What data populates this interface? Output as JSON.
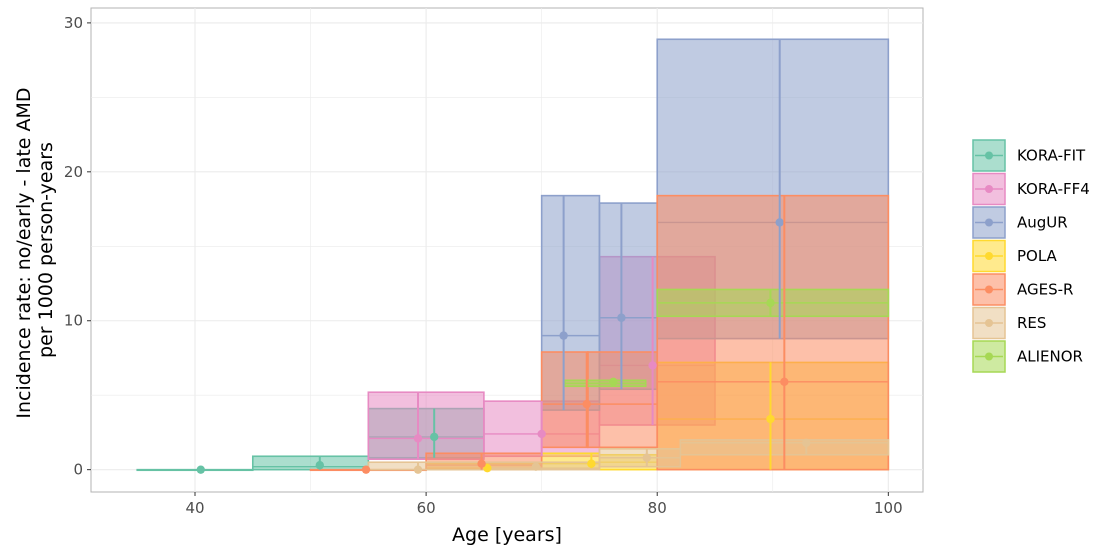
{
  "chart_data": {
    "type": "area",
    "xlabel": "Age [years]",
    "ylabel_lines": [
      "Incidence rate: no/early - late AMD",
      "per 1000 person-years"
    ],
    "xlim": [
      31,
      103
    ],
    "ylim": [
      -1.5,
      31
    ],
    "x_ticks": [
      40,
      60,
      80,
      100
    ],
    "y_ticks": [
      0,
      10,
      20,
      30
    ],
    "x_tick_labels": [
      "40",
      "60",
      "80",
      "100"
    ],
    "y_tick_labels": [
      "0",
      "10",
      "20",
      "30"
    ],
    "grid": true,
    "legend_position": "right",
    "series": [
      {
        "name": "KORA-FIT",
        "color": "#66c2a5",
        "bands": [
          {
            "x0": 35,
            "x1": 45,
            "lo": 0,
            "hi": 0,
            "est": 0
          },
          {
            "x0": 45,
            "x1": 55,
            "lo": 0,
            "hi": 0.9,
            "est": 0.2
          },
          {
            "x0": 55,
            "x1": 65,
            "lo": 0.8,
            "hi": 4.1,
            "est": 2.2
          }
        ],
        "points": [
          {
            "x": 40.5,
            "y": 0,
            "lo": 0,
            "hi": 0
          },
          {
            "x": 50.8,
            "y": 0.3,
            "lo": 0,
            "hi": 0.9
          },
          {
            "x": 60.7,
            "y": 2.2,
            "lo": 0.8,
            "hi": 4.1
          }
        ]
      },
      {
        "name": "KORA-FF4",
        "color": "#e78ac3",
        "bands": [
          {
            "x0": 55,
            "x1": 65,
            "lo": 0.7,
            "hi": 5.2,
            "est": 2.1
          },
          {
            "x0": 65,
            "x1": 75,
            "lo": 0.9,
            "hi": 4.6,
            "est": 2.4
          },
          {
            "x0": 75,
            "x1": 85,
            "lo": 3.0,
            "hi": 14.3,
            "est": 7.0
          }
        ],
        "points": [
          {
            "x": 59.3,
            "y": 2.1,
            "lo": 0.7,
            "hi": 5.2
          },
          {
            "x": 70.0,
            "y": 2.4,
            "lo": 0.9,
            "hi": 4.6
          },
          {
            "x": 79.6,
            "y": 7.0,
            "lo": 3.0,
            "hi": 14.3
          }
        ]
      },
      {
        "name": "AugUR",
        "color": "#8da0cb",
        "bands": [
          {
            "x0": 70,
            "x1": 75,
            "lo": 4.0,
            "hi": 18.4,
            "est": 9.0
          },
          {
            "x0": 75,
            "x1": 80,
            "lo": 5.4,
            "hi": 17.9,
            "est": 10.2
          },
          {
            "x0": 80,
            "x1": 100,
            "lo": 8.8,
            "hi": 28.9,
            "est": 16.6
          }
        ],
        "points": [
          {
            "x": 71.9,
            "y": 9.0,
            "lo": 4.0,
            "hi": 18.4
          },
          {
            "x": 76.9,
            "y": 10.2,
            "lo": 5.4,
            "hi": 17.9
          },
          {
            "x": 90.6,
            "y": 16.6,
            "lo": 8.8,
            "hi": 28.9
          }
        ]
      },
      {
        "name": "POLA",
        "color": "#ffd92f",
        "bands": [
          {
            "x0": 60,
            "x1": 65,
            "lo": 0,
            "hi": 0.4,
            "est": 0.1
          },
          {
            "x0": 65,
            "x1": 70,
            "lo": 0,
            "hi": 0.4,
            "est": 0.1
          },
          {
            "x0": 70,
            "x1": 75,
            "lo": 0.1,
            "hi": 1.1,
            "est": 0.4
          },
          {
            "x0": 75,
            "x1": 80,
            "lo": 0,
            "hi": 1.0,
            "est": 0.5
          },
          {
            "x0": 80,
            "x1": 100,
            "lo": 0,
            "hi": 7.2,
            "est": 3.4
          }
        ],
        "points": [
          {
            "x": 65.3,
            "y": 0.1,
            "lo": 0,
            "hi": 0.4
          },
          {
            "x": 74.3,
            "y": 0.4,
            "lo": 0.1,
            "hi": 1.1
          },
          {
            "x": 89.8,
            "y": 3.4,
            "lo": 0,
            "hi": 7.2
          }
        ]
      },
      {
        "name": "AGES-R",
        "color": "#fc8d62",
        "bands": [
          {
            "x0": 50,
            "x1": 60,
            "lo": 0,
            "hi": 0,
            "est": 0
          },
          {
            "x0": 60,
            "x1": 70,
            "lo": 0,
            "hi": 1.1,
            "est": 0.3
          },
          {
            "x0": 70,
            "x1": 74,
            "lo": 1.5,
            "hi": 7.9,
            "est": 4.4
          },
          {
            "x0": 74,
            "x1": 80,
            "lo": 1.5,
            "hi": 7.9,
            "est": 4.4
          },
          {
            "x0": 80,
            "x1": 100,
            "lo": 0,
            "hi": 18.4,
            "est": 5.9
          }
        ],
        "points": [
          {
            "x": 54.8,
            "y": 0,
            "lo": 0,
            "hi": 0
          },
          {
            "x": 64.8,
            "y": 0.4,
            "lo": 0,
            "hi": 1.1
          },
          {
            "x": 73.9,
            "y": 4.4,
            "lo": 1.5,
            "hi": 7.9
          },
          {
            "x": 91.0,
            "y": 5.9,
            "lo": 0,
            "hi": 18.4
          }
        ]
      },
      {
        "name": "RES",
        "color": "#e5c494",
        "bands": [
          {
            "x0": 55,
            "x1": 65,
            "lo": 0,
            "hi": 0.5,
            "est": 0
          },
          {
            "x0": 65,
            "x1": 75,
            "lo": 0,
            "hi": 0.5,
            "est": 0.1
          },
          {
            "x0": 75,
            "x1": 82,
            "lo": 0.2,
            "hi": 1.4,
            "est": 0.8
          },
          {
            "x0": 82,
            "x1": 100,
            "lo": 1.0,
            "hi": 2.0,
            "est": 1.8
          }
        ],
        "points": [
          {
            "x": 59.3,
            "y": 0,
            "lo": 0,
            "hi": 0.5
          },
          {
            "x": 69.5,
            "y": 0.2,
            "lo": 0,
            "hi": 0.5
          },
          {
            "x": 79.1,
            "y": 0.8,
            "lo": 0.2,
            "hi": 1.4
          },
          {
            "x": 92.9,
            "y": 1.8,
            "lo": 1.0,
            "hi": 2.0
          }
        ]
      },
      {
        "name": "ALIENOR",
        "color": "#a6d854",
        "bands": [
          {
            "x0": 72,
            "x1": 79,
            "lo": 5.6,
            "hi": 6.0,
            "est": 5.8
          },
          {
            "x0": 80,
            "x1": 100,
            "lo": 10.3,
            "hi": 12.1,
            "est": 11.2
          }
        ],
        "points": [
          {
            "x": 76.2,
            "y": 5.9,
            "lo": 5.6,
            "hi": 6.0
          },
          {
            "x": 89.8,
            "y": 11.2,
            "lo": 10.3,
            "hi": 12.1
          }
        ]
      }
    ]
  }
}
